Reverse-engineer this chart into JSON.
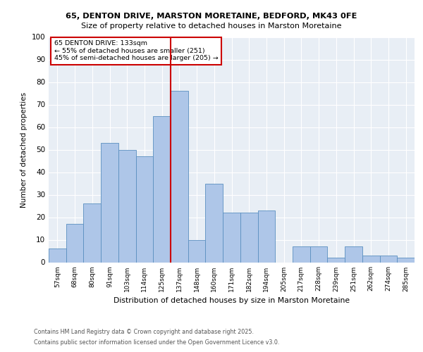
{
  "title1": "65, DENTON DRIVE, MARSTON MORETAINE, BEDFORD, MK43 0FE",
  "title2": "Size of property relative to detached houses in Marston Moretaine",
  "xlabel": "Distribution of detached houses by size in Marston Moretaine",
  "ylabel": "Number of detached properties",
  "categories": [
    "57sqm",
    "68sqm",
    "80sqm",
    "91sqm",
    "103sqm",
    "114sqm",
    "125sqm",
    "137sqm",
    "148sqm",
    "160sqm",
    "171sqm",
    "182sqm",
    "194sqm",
    "205sqm",
    "217sqm",
    "228sqm",
    "239sqm",
    "251sqm",
    "262sqm",
    "274sqm",
    "285sqm"
  ],
  "values": [
    6,
    17,
    26,
    53,
    50,
    47,
    65,
    76,
    10,
    35,
    22,
    22,
    23,
    0,
    7,
    7,
    2,
    7,
    3,
    3,
    2
  ],
  "bar_color": "#aec6e8",
  "bar_edge_color": "#5a8fc0",
  "reference_line_x": 6.5,
  "reference_line_color": "#cc0000",
  "annotation_box_text": "65 DENTON DRIVE: 133sqm\n← 55% of detached houses are smaller (251)\n45% of semi-detached houses are larger (205) →",
  "annotation_box_color": "#cc0000",
  "background_color": "#e8eef5",
  "ylim": [
    0,
    100
  ],
  "yticks": [
    0,
    10,
    20,
    30,
    40,
    50,
    60,
    70,
    80,
    90,
    100
  ],
  "footnote1": "Contains HM Land Registry data © Crown copyright and database right 2025.",
  "footnote2": "Contains public sector information licensed under the Open Government Licence v3.0."
}
